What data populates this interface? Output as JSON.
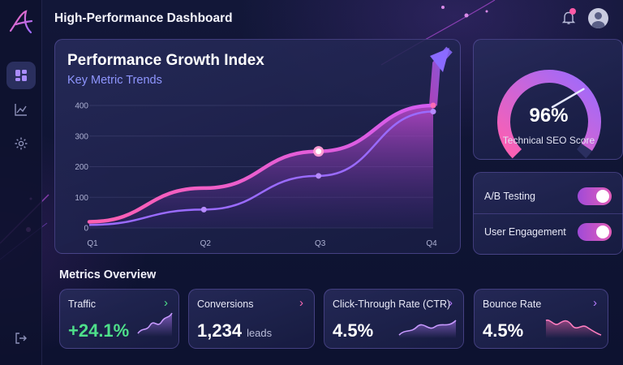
{
  "app": {
    "title": "High-Performance Dashboard"
  },
  "sidebar": {
    "items": [
      {
        "name": "dashboard",
        "icon": "grid-icon",
        "active": true
      },
      {
        "name": "analytics",
        "icon": "chart-icon",
        "active": false
      },
      {
        "name": "settings",
        "icon": "gear-icon",
        "active": false
      }
    ],
    "logout_icon": "logout-icon"
  },
  "header": {
    "notification_icon": "bell-icon",
    "notification_dot_color": "#ff5aa6",
    "avatar_icon": "user-avatar-icon"
  },
  "main_chart": {
    "title": "Performance Growth Index",
    "subtitle": "Key Metric Trends",
    "chart_data": {
      "type": "area",
      "title": "Performance Growth Index",
      "subtitle": "Key Metric Trends",
      "categories": [
        "Q1",
        "Q2",
        "Q3",
        "Q4"
      ],
      "yticks": [
        "400",
        "300",
        "200",
        "100",
        "0"
      ],
      "ylim": [
        0,
        400
      ],
      "grid": true,
      "series": [
        {
          "color": "#ff5fb0",
          "values": [
            20,
            130,
            250,
            400
          ]
        },
        {
          "color": "#9a6bff",
          "values": [
            10,
            60,
            170,
            380
          ]
        }
      ]
    }
  },
  "seo": {
    "value": "96%",
    "label": "Technical SEO Score",
    "level": 0.96
  },
  "toggles": [
    {
      "label": "A/B Testing",
      "on": true
    },
    {
      "label": "User Engagement",
      "on": true
    }
  ],
  "metrics": {
    "heading": "Metrics Overview",
    "cards": [
      {
        "label": "Traffic",
        "value": "+24.1%",
        "unit": "",
        "value_color": "#4ee08a",
        "chevron_color": "#4ee08a",
        "spark_color": "#b77cff"
      },
      {
        "label": "Conversions",
        "value": "1,234",
        "unit": "leads",
        "value_color": "#ffffff",
        "chevron_color": "#ff6ab5",
        "spark_color": ""
      },
      {
        "label": "Click-Through Rate (CTR)",
        "value": "4.5%",
        "unit": "",
        "value_color": "#ffffff",
        "chevron_color": "#b77cff",
        "spark_color": "#b77cff"
      },
      {
        "label": "Bounce Rate",
        "value": "4.5%",
        "unit": "",
        "value_color": "#ffffff",
        "chevron_color": "#b77cff",
        "spark_color": "#ff6ab5"
      }
    ]
  }
}
